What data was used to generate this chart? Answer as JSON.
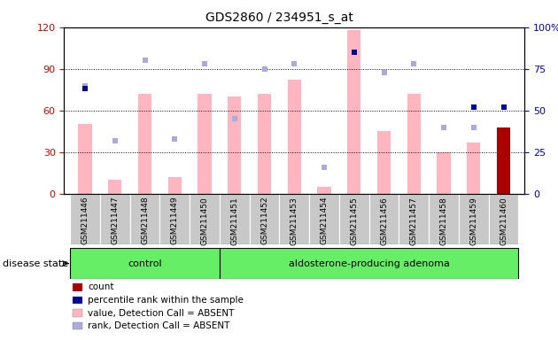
{
  "title": "GDS2860 / 234951_s_at",
  "samples": [
    "GSM211446",
    "GSM211447",
    "GSM211448",
    "GSM211449",
    "GSM211450",
    "GSM211451",
    "GSM211452",
    "GSM211453",
    "GSM211454",
    "GSM211455",
    "GSM211456",
    "GSM211457",
    "GSM211458",
    "GSM211459",
    "GSM211460"
  ],
  "n_control": 5,
  "n_adenoma": 10,
  "value_absent": [
    50,
    10,
    72,
    12,
    72,
    70,
    72,
    82,
    5,
    118,
    45,
    72,
    30,
    37,
    0
  ],
  "rank_absent": [
    65,
    32,
    80,
    33,
    78,
    45,
    75,
    78,
    16,
    null,
    73,
    78,
    40,
    40,
    null
  ],
  "count": [
    0,
    0,
    0,
    0,
    0,
    0,
    0,
    0,
    0,
    0,
    0,
    0,
    0,
    0,
    48
  ],
  "percentile": [
    63,
    null,
    null,
    null,
    null,
    null,
    null,
    null,
    null,
    85,
    null,
    null,
    null,
    52,
    52
  ],
  "ylim_left": [
    0,
    120
  ],
  "ylim_right": [
    0,
    100
  ],
  "yticks_left": [
    0,
    30,
    60,
    90,
    120
  ],
  "yticks_right": [
    0,
    25,
    50,
    75,
    100
  ],
  "ytick_labels_left": [
    "0",
    "30",
    "60",
    "90",
    "120"
  ],
  "ytick_labels_right": [
    "0",
    "25",
    "50",
    "75",
    "100%"
  ],
  "color_value_absent": "#FFB6C1",
  "color_rank_absent": "#AAAADD",
  "color_count": "#AA0000",
  "color_percentile": "#000099",
  "left_tick_color": "#CC0000",
  "right_tick_color": "#0000BB",
  "legend_items": [
    "count",
    "percentile rank within the sample",
    "value, Detection Call = ABSENT",
    "rank, Detection Call = ABSENT"
  ],
  "legend_colors": [
    "#AA0000",
    "#000099",
    "#FFB6C1",
    "#AAAADD"
  ],
  "disease_state_label": "disease state",
  "group_labels": [
    "control",
    "aldosterone-producing adenoma"
  ],
  "group_color": "#66EE66",
  "background_color": "#FFFFFF",
  "plot_bg_color": "#FFFFFF",
  "grid_color": "#000000",
  "bar_width": 0.45
}
